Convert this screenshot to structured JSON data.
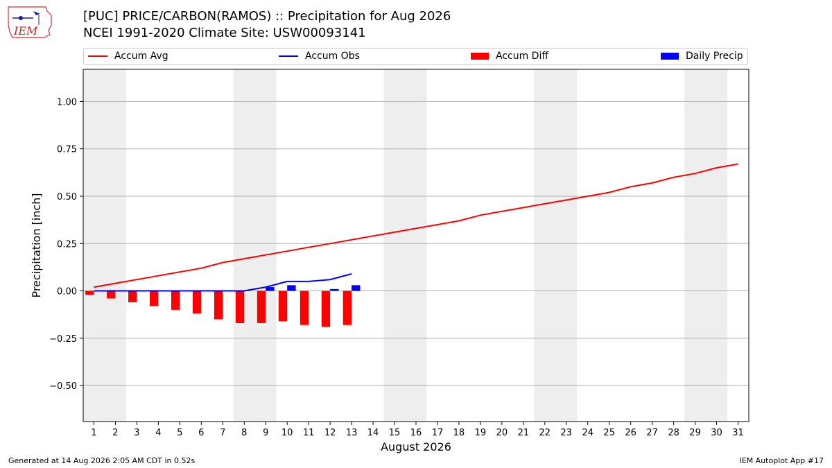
{
  "header": {
    "title_line1": "[PUC] PRICE/CARBON(RAMOS) :: Precipitation for Aug 2026",
    "title_line2": "NCEI 1991-2020 Climate Site: USW00093141"
  },
  "logo": {
    "text": "IEM"
  },
  "footer": {
    "generated": "Generated at 14 Aug 2026 2:05 AM CDT in 0.52s",
    "app": "IEM Autoplot App #17"
  },
  "legend": {
    "placement": "top",
    "items": [
      {
        "label": "Accum Avg",
        "kind": "line",
        "color": "#ff0000"
      },
      {
        "label": "Accum Obs",
        "kind": "line",
        "color": "#0000ff"
      },
      {
        "label": "Accum Diff",
        "kind": "box",
        "color": "#ff0000"
      },
      {
        "label": "Daily Precip",
        "kind": "box",
        "color": "#0000ff"
      }
    ]
  },
  "chart_data": {
    "type": "line",
    "title": "[PUC] PRICE/CARBON(RAMOS) :: Precipitation for Aug 2026",
    "xlabel": "August 2026",
    "ylabel": "Precipitation [inch]",
    "x": [
      1,
      2,
      3,
      4,
      5,
      6,
      7,
      8,
      9,
      10,
      11,
      12,
      13,
      14,
      15,
      16,
      17,
      18,
      19,
      20,
      21,
      22,
      23,
      24,
      25,
      26,
      27,
      28,
      29,
      30,
      31
    ],
    "xlim": [
      0.5,
      31.5
    ],
    "ylim": [
      -0.69,
      1.17
    ],
    "yticks": [
      -0.5,
      -0.25,
      0.0,
      0.25,
      0.5,
      0.75,
      1.0
    ],
    "ytick_labels": [
      "−0.50",
      "−0.25",
      "0.00",
      "0.25",
      "0.50",
      "0.75",
      "1.00"
    ],
    "grid": "horizontal",
    "weekend_shading": [
      [
        1,
        2
      ],
      [
        8,
        9
      ],
      [
        15,
        16
      ],
      [
        22,
        23
      ],
      [
        29,
        30
      ]
    ],
    "shade_color": "#eeeeee",
    "series": [
      {
        "name": "Accum Avg",
        "type": "line",
        "color": "#ff0000",
        "x": [
          1,
          2,
          3,
          4,
          5,
          6,
          7,
          8,
          9,
          10,
          11,
          12,
          13,
          14,
          15,
          16,
          17,
          18,
          19,
          20,
          21,
          22,
          23,
          24,
          25,
          26,
          27,
          28,
          29,
          30,
          31
        ],
        "values": [
          0.02,
          0.04,
          0.06,
          0.08,
          0.1,
          0.12,
          0.15,
          0.17,
          0.19,
          0.21,
          0.23,
          0.25,
          0.27,
          0.29,
          0.31,
          0.33,
          0.35,
          0.37,
          0.4,
          0.42,
          0.44,
          0.46,
          0.48,
          0.5,
          0.52,
          0.55,
          0.57,
          0.6,
          0.62,
          0.65,
          0.67
        ]
      },
      {
        "name": "Accum Obs",
        "type": "line",
        "color": "#0000ff",
        "x": [
          1,
          2,
          3,
          4,
          5,
          6,
          7,
          8,
          9,
          10,
          11,
          12,
          13
        ],
        "values": [
          0.0,
          0.0,
          0.0,
          0.0,
          0.0,
          0.0,
          0.0,
          0.0,
          0.02,
          0.05,
          0.05,
          0.06,
          0.09
        ]
      },
      {
        "name": "Accum Diff",
        "type": "bar",
        "color": "#ff0000",
        "offset": -0.2,
        "x": [
          1,
          2,
          3,
          4,
          5,
          6,
          7,
          8,
          9,
          10,
          11,
          12,
          13
        ],
        "values": [
          -0.02,
          -0.04,
          -0.06,
          -0.08,
          -0.1,
          -0.12,
          -0.15,
          -0.17,
          -0.17,
          -0.16,
          -0.18,
          -0.19,
          -0.18
        ]
      },
      {
        "name": "Daily Precip",
        "type": "bar",
        "color": "#0000ff",
        "offset": 0.2,
        "x": [
          1,
          2,
          3,
          4,
          5,
          6,
          7,
          8,
          9,
          10,
          11,
          12,
          13
        ],
        "values": [
          0.0,
          0.0,
          0.0,
          0.0,
          0.0,
          0.0,
          0.0,
          0.0,
          0.02,
          0.03,
          0.0,
          0.01,
          0.03
        ]
      }
    ]
  }
}
